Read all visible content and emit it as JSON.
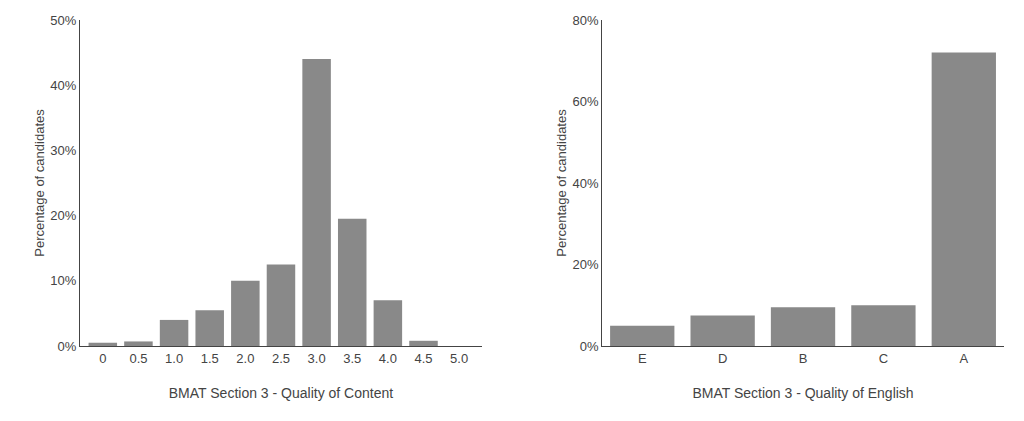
{
  "chart_data": [
    {
      "type": "bar",
      "xlabel": "BMAT Section 3 - Quality of Content",
      "ylabel": "Percentage of candidates",
      "x": [
        0,
        0.5,
        1.0,
        1.5,
        2.0,
        2.5,
        3.0,
        3.5,
        4.0,
        4.5,
        5.0
      ],
      "values": [
        0.5,
        0.7,
        4.0,
        5.5,
        10.0,
        12.5,
        44.0,
        19.5,
        7.0,
        0.8,
        0.0
      ],
      "color": "#898989",
      "xlim": [
        -0.32,
        5.32
      ],
      "xticks": [
        0,
        0.5,
        {
          "value": 1,
          "label": "1.0"
        },
        1.5,
        {
          "value": 2,
          "label": "2.0"
        },
        2.5,
        {
          "value": 3,
          "label": "3.0"
        },
        3.5,
        {
          "value": 4,
          "label": "4.0"
        },
        4.5,
        {
          "value": 5,
          "label": "5.0"
        }
      ],
      "ylim": [
        0,
        50
      ],
      "yticks": [
        {
          "value": 0,
          "label": "0%"
        },
        {
          "value": 10,
          "label": "10%"
        },
        {
          "value": 20,
          "label": "20%"
        },
        {
          "value": 30,
          "label": "30%"
        },
        {
          "value": 40,
          "label": "40%"
        },
        {
          "value": 50,
          "label": "50%"
        }
      ],
      "grid": false
    },
    {
      "type": "bar",
      "xlabel": "BMAT Section 3 - Quality of English",
      "ylabel": "Percentage of candidates",
      "categories": [
        "E",
        "D",
        "B",
        "C",
        "A"
      ],
      "values": [
        5.0,
        7.5,
        9.5,
        10.0,
        72.0
      ],
      "color": "#898989",
      "ylim": [
        0,
        80
      ],
      "yticks": [
        {
          "value": 0,
          "label": "0%"
        },
        {
          "value": 20,
          "label": "20%"
        },
        {
          "value": 40,
          "label": "40%"
        },
        {
          "value": 60,
          "label": "60%"
        },
        {
          "value": 80,
          "label": "80%"
        }
      ],
      "grid": false
    }
  ]
}
